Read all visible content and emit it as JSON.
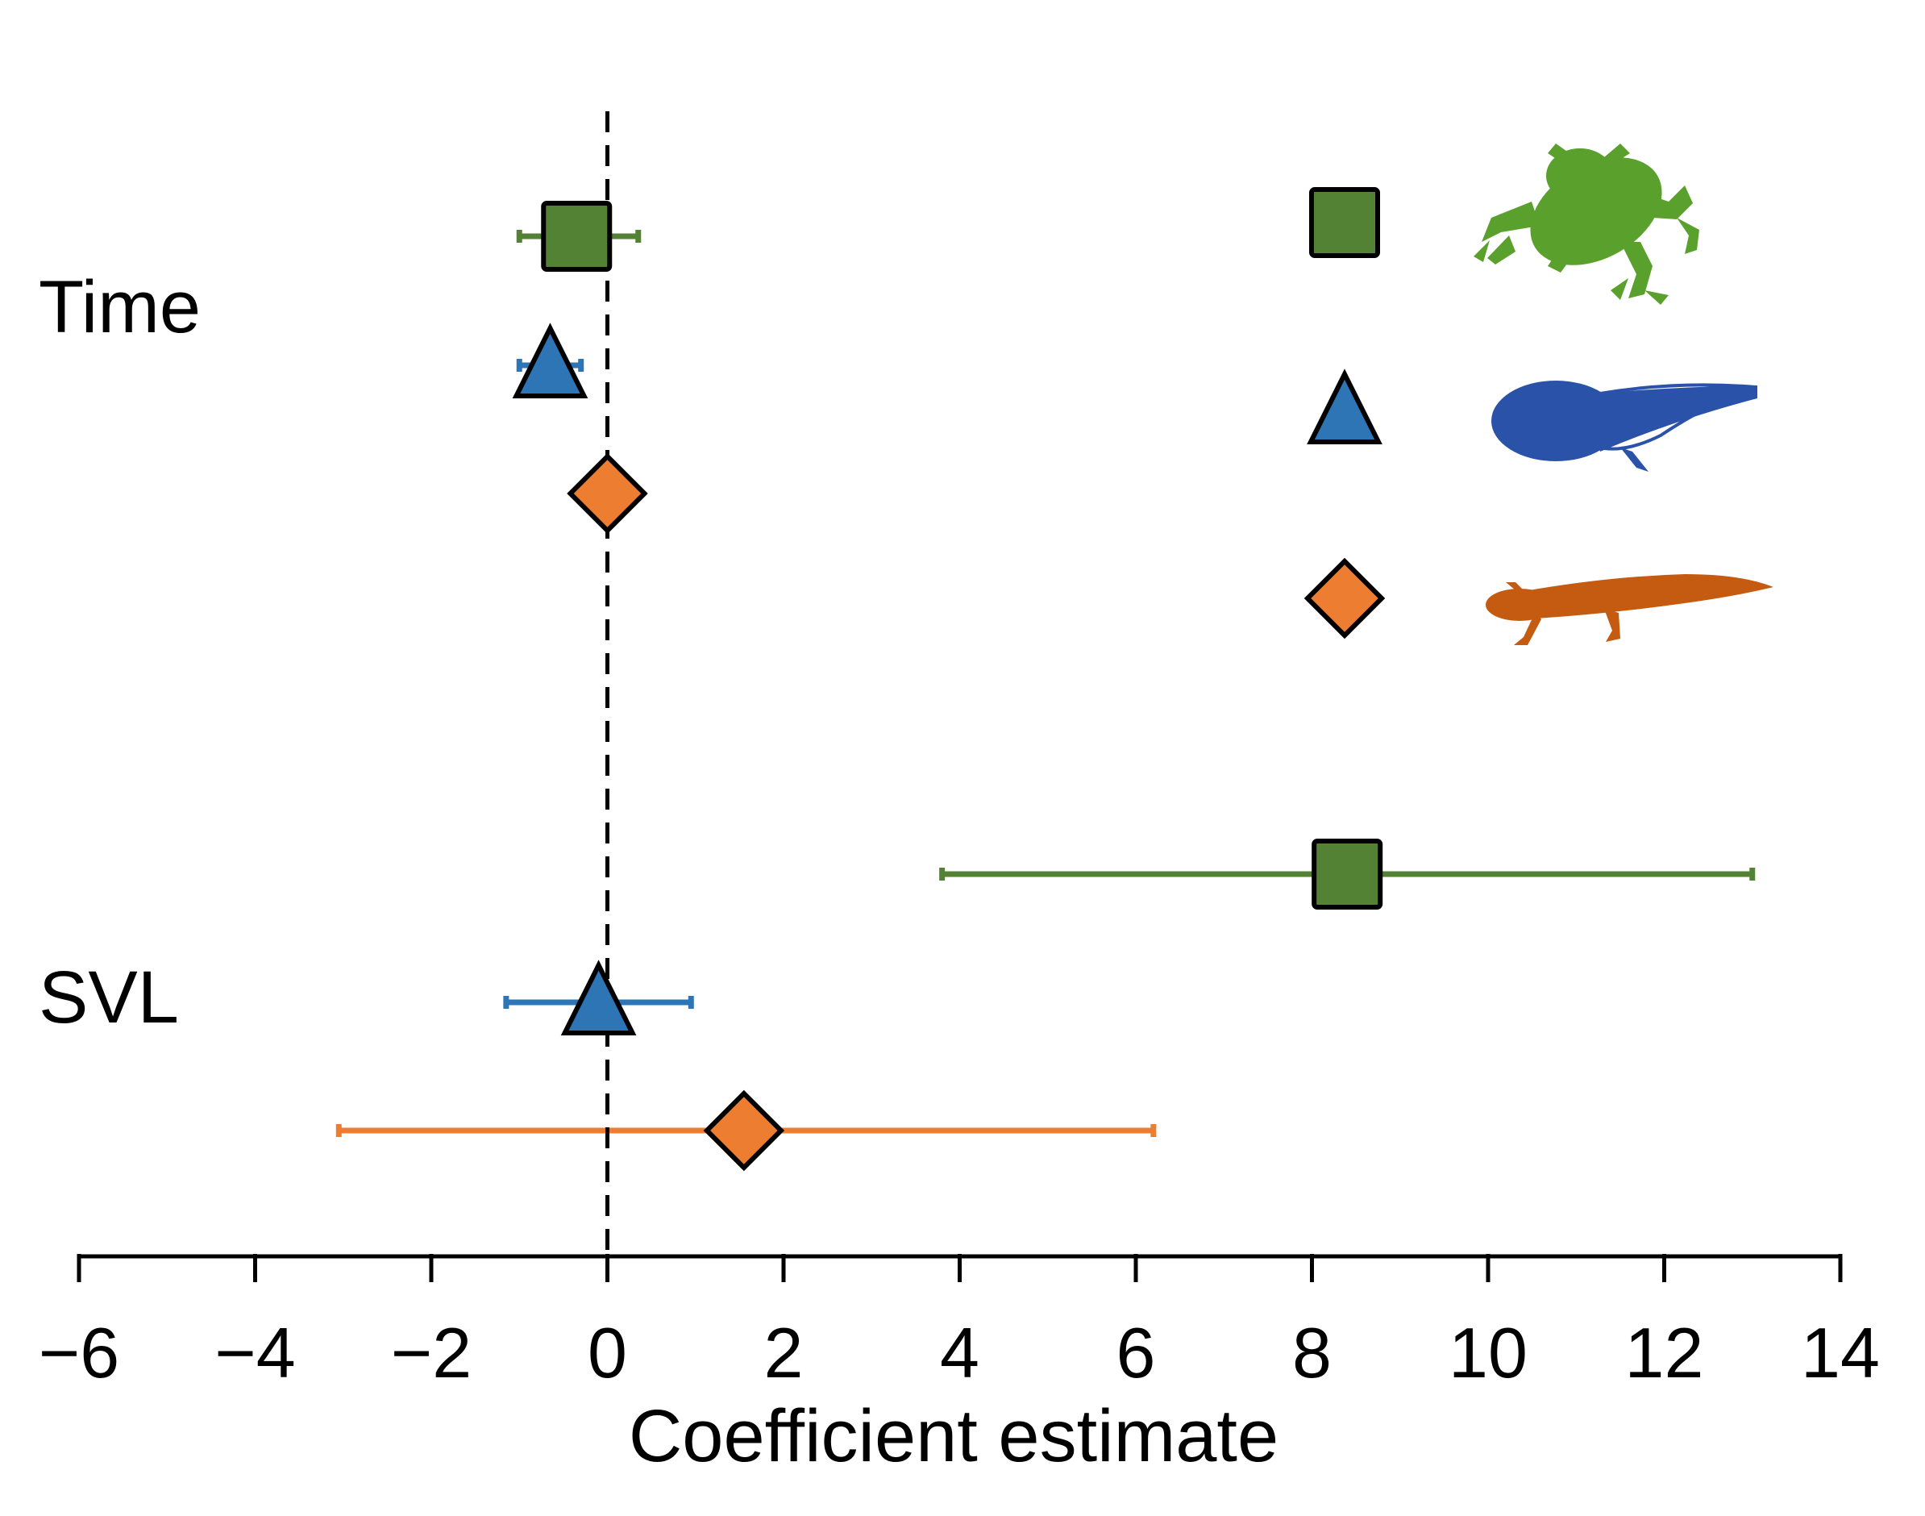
{
  "chart_data": {
    "type": "forest",
    "xlabel": "Coefficient estimate",
    "xlim": [
      -6,
      14
    ],
    "xticks": [
      -6,
      -4,
      -2,
      0,
      2,
      4,
      6,
      8,
      10,
      12,
      14
    ],
    "xtick_labels": [
      "−6",
      "−4",
      "−2",
      "0",
      "2",
      "4",
      "6",
      "8",
      "10",
      "12",
      "14"
    ],
    "reference_line": {
      "x": 0,
      "style": "dashed"
    },
    "groups": [
      "Time",
      "SVL"
    ],
    "series": [
      {
        "name": "frog",
        "marker": "square",
        "color": "#548235",
        "estimates": [
          {
            "group": "Time",
            "value": -0.35,
            "lower": -1.0,
            "upper": 0.35
          },
          {
            "group": "SVL",
            "value": 8.4,
            "lower": 3.8,
            "upper": 13.0
          }
        ]
      },
      {
        "name": "tadpole",
        "marker": "triangle",
        "color": "#2e75b6",
        "estimates": [
          {
            "group": "Time",
            "value": -0.65,
            "lower": -1.0,
            "upper": -0.3
          },
          {
            "group": "SVL",
            "value": -0.1,
            "lower": -1.15,
            "upper": 0.95
          }
        ]
      },
      {
        "name": "salamander",
        "marker": "diamond",
        "color": "#ed7d31",
        "estimates": [
          {
            "group": "Time",
            "value": 0.0,
            "lower": 0.0,
            "upper": 0.0
          },
          {
            "group": "SVL",
            "value": 1.55,
            "lower": -3.05,
            "upper": 6.2
          }
        ]
      }
    ],
    "legend": {
      "position": "top-right",
      "icons": [
        "frog-silhouette",
        "tadpole-silhouette",
        "salamander-silhouette"
      ]
    }
  }
}
